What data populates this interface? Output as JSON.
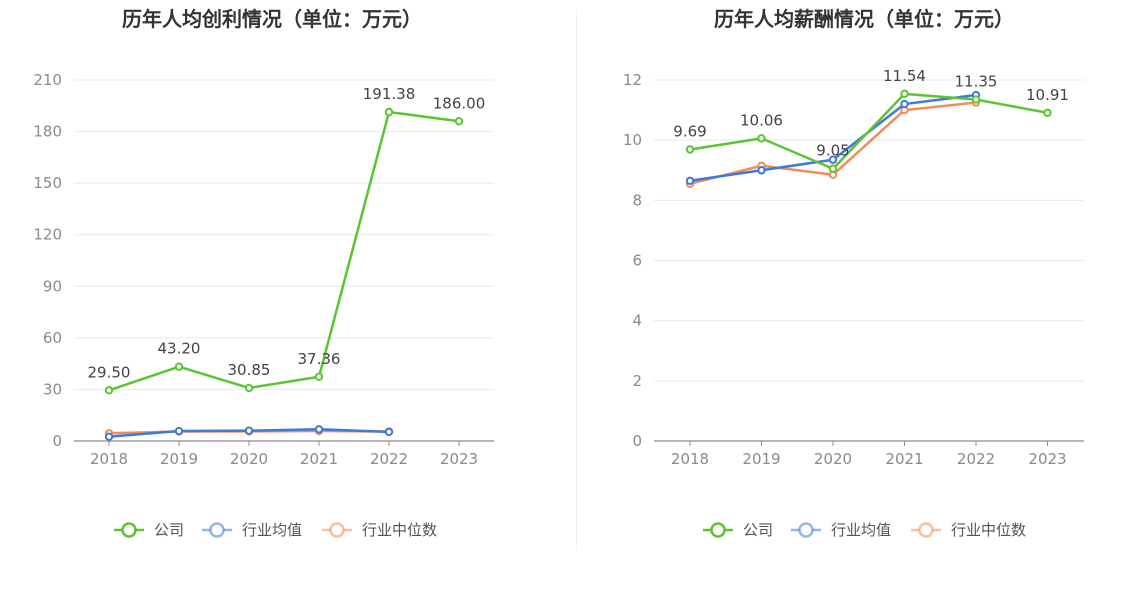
{
  "chart_data": [
    {
      "type": "line",
      "title": "历年人均创利情况（单位：万元）",
      "categories": [
        "2018",
        "2019",
        "2020",
        "2021",
        "2022",
        "2023"
      ],
      "ylim": [
        0,
        210
      ],
      "yticks": [
        0,
        30,
        60,
        90,
        120,
        150,
        180,
        210
      ],
      "grid": true,
      "legend_position": "bottom",
      "series": [
        {
          "name": "公司",
          "color": "#5ac530",
          "values": [
            29.5,
            43.2,
            30.85,
            37.36,
            191.38,
            186.0
          ],
          "labels": [
            "29.50",
            "43.20",
            "30.85",
            "37.36",
            "191.38",
            "186.00"
          ]
        },
        {
          "name": "行业均值",
          "color": "#3f79d9",
          "values": [
            2.5,
            5.8,
            6.0,
            6.8,
            5.3,
            null
          ]
        },
        {
          "name": "行业中位数",
          "color": "#ef8c5a",
          "values": [
            4.5,
            5.5,
            5.6,
            5.8,
            5.5,
            null
          ]
        }
      ]
    },
    {
      "type": "line",
      "title": "历年人均薪酬情况（单位：万元）",
      "categories": [
        "2018",
        "2019",
        "2020",
        "2021",
        "2022",
        "2023"
      ],
      "ylim": [
        0,
        12
      ],
      "yticks": [
        0,
        2,
        4,
        6,
        8,
        10,
        12
      ],
      "grid": true,
      "legend_position": "bottom",
      "series": [
        {
          "name": "公司",
          "color": "#5ac530",
          "values": [
            9.69,
            10.06,
            9.05,
            11.54,
            11.35,
            10.91
          ],
          "labels": [
            "9.69",
            "10.06",
            "9.05",
            "11.54",
            "11.35",
            "10.91"
          ]
        },
        {
          "name": "行业均值",
          "color": "#3f79d9",
          "values": [
            8.65,
            9.0,
            9.35,
            11.2,
            11.5,
            null
          ]
        },
        {
          "name": "行业中位数",
          "color": "#ef8c5a",
          "values": [
            8.55,
            9.15,
            8.85,
            11.0,
            11.25,
            null
          ]
        }
      ]
    }
  ]
}
